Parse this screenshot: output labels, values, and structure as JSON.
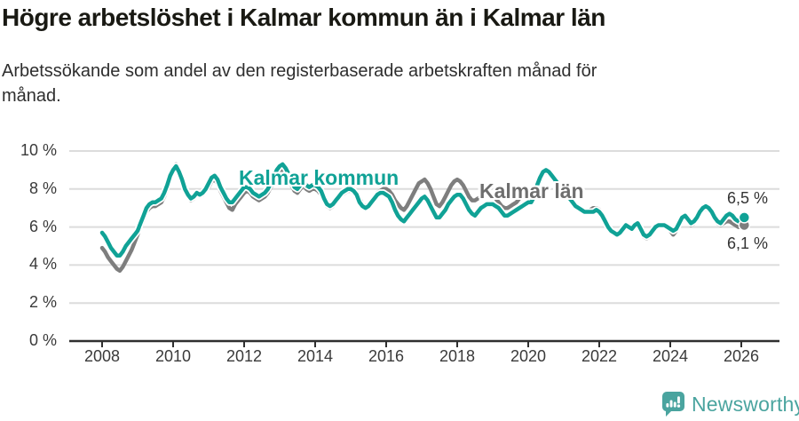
{
  "header": {
    "title": "Högre arbetslöshet i Kalmar kommun än i Kalmar län",
    "subtitle": "Arbetssökande som andel av den registerbaserade arbetskraften månad för månad."
  },
  "chart_data": {
    "type": "line",
    "unit": "%",
    "x_start_year": 2008,
    "x_months_per_point": 1,
    "ylim": [
      0,
      10
    ],
    "grid": true,
    "y_tick_values": [
      0,
      2,
      4,
      6,
      8,
      10
    ],
    "y_tick_labels": [
      "0 %",
      "2 %",
      "4 %",
      "6 %",
      "8 %",
      "10 %"
    ],
    "x_tick_years": [
      2008,
      2010,
      2012,
      2014,
      2016,
      2018,
      2020,
      2022,
      2024,
      2026
    ],
    "x_tick_labels": [
      "2008",
      "2010",
      "2012",
      "2014",
      "2016",
      "2018",
      "2020",
      "2022",
      "2024",
      "2026"
    ],
    "series": [
      {
        "name": "Kalmar kommun",
        "color": "#10a296",
        "final_label": "6,5 %",
        "values": [
          5.7,
          5.5,
          5.2,
          4.9,
          4.7,
          4.5,
          4.5,
          4.7,
          5.0,
          5.2,
          5.4,
          5.6,
          5.8,
          6.2,
          6.6,
          7.0,
          7.2,
          7.3,
          7.3,
          7.4,
          7.5,
          7.8,
          8.2,
          8.7,
          9.0,
          9.2,
          8.9,
          8.5,
          8.0,
          7.7,
          7.5,
          7.6,
          7.8,
          7.7,
          7.8,
          8.0,
          8.3,
          8.6,
          8.7,
          8.5,
          8.1,
          7.8,
          7.5,
          7.3,
          7.3,
          7.5,
          7.7,
          7.9,
          8.1,
          8.1,
          8.0,
          7.8,
          7.7,
          7.6,
          7.7,
          7.8,
          8.0,
          8.3,
          8.6,
          9.0,
          9.2,
          9.3,
          9.1,
          8.8,
          8.4,
          8.1,
          8.0,
          8.2,
          8.4,
          8.2,
          8.1,
          8.2,
          8.2,
          8.1,
          7.9,
          7.5,
          7.2,
          7.1,
          7.2,
          7.4,
          7.6,
          7.8,
          7.9,
          8.0,
          8.0,
          7.9,
          7.7,
          7.3,
          7.1,
          7.0,
          7.1,
          7.3,
          7.5,
          7.7,
          7.8,
          7.8,
          7.7,
          7.6,
          7.3,
          6.9,
          6.6,
          6.4,
          6.3,
          6.5,
          6.7,
          6.9,
          7.1,
          7.3,
          7.5,
          7.6,
          7.4,
          7.1,
          6.8,
          6.5,
          6.5,
          6.7,
          6.9,
          7.2,
          7.4,
          7.6,
          7.7,
          7.7,
          7.5,
          7.2,
          6.9,
          6.7,
          6.6,
          6.8,
          7.0,
          7.1,
          7.2,
          7.2,
          7.2,
          7.1,
          7.0,
          6.8,
          6.6,
          6.6,
          6.7,
          6.8,
          6.9,
          7.0,
          7.1,
          7.2,
          7.3,
          7.3,
          7.6,
          8.2,
          8.6,
          8.9,
          9.0,
          8.9,
          8.7,
          8.5,
          8.3,
          8.1,
          7.9,
          7.7,
          7.5,
          7.3,
          7.1,
          7.0,
          6.9,
          6.8,
          6.8,
          6.8,
          6.8,
          6.9,
          6.8,
          6.6,
          6.3,
          6.0,
          5.8,
          5.7,
          5.6,
          5.7,
          5.9,
          6.1,
          6.0,
          5.9,
          6.1,
          6.2,
          5.9,
          5.6,
          5.5,
          5.6,
          5.8,
          6.0,
          6.1,
          6.1,
          6.1,
          6.0,
          5.9,
          5.8,
          5.9,
          6.2,
          6.5,
          6.6,
          6.4,
          6.2,
          6.3,
          6.5,
          6.8,
          7.0,
          7.1,
          7.0,
          6.8,
          6.5,
          6.3,
          6.2,
          6.4,
          6.6,
          6.7,
          6.6,
          6.4,
          6.3,
          6.4,
          6.5
        ]
      },
      {
        "name": "Kalmar län",
        "color": "#7e7e7e",
        "final_label": "6,1 %",
        "values": [
          4.9,
          4.7,
          4.4,
          4.2,
          4.0,
          3.8,
          3.7,
          3.9,
          4.2,
          4.5,
          4.8,
          5.2,
          5.6,
          6.0,
          6.4,
          6.8,
          7.0,
          7.1,
          7.1,
          7.2,
          7.3,
          7.6,
          8.0,
          8.7,
          9.1,
          9.3,
          9.0,
          8.6,
          8.0,
          7.6,
          7.4,
          7.5,
          7.7,
          7.7,
          7.7,
          7.9,
          8.1,
          8.4,
          8.5,
          8.3,
          7.9,
          7.6,
          7.3,
          7.0,
          6.9,
          7.2,
          7.4,
          7.6,
          7.8,
          7.9,
          7.8,
          7.6,
          7.5,
          7.4,
          7.5,
          7.6,
          7.8,
          8.1,
          8.4,
          8.7,
          8.9,
          9.0,
          8.8,
          8.5,
          8.2,
          7.9,
          7.8,
          8.0,
          8.2,
          8.0,
          7.9,
          8.0,
          8.0,
          7.9,
          7.7,
          7.4,
          7.1,
          7.0,
          7.1,
          7.3,
          7.5,
          7.7,
          7.8,
          7.9,
          7.9,
          8.0,
          7.8,
          7.5,
          7.2,
          7.1,
          7.2,
          7.4,
          7.6,
          7.8,
          7.9,
          8.0,
          8.0,
          7.9,
          7.7,
          7.4,
          7.2,
          7.0,
          6.9,
          7.1,
          7.4,
          7.7,
          8.0,
          8.3,
          8.4,
          8.5,
          8.3,
          8.0,
          7.6,
          7.2,
          7.1,
          7.3,
          7.6,
          7.9,
          8.2,
          8.4,
          8.5,
          8.4,
          8.2,
          7.9,
          7.6,
          7.4,
          7.4,
          7.5,
          7.6,
          7.7,
          7.7,
          7.7,
          7.6,
          7.5,
          7.3,
          7.1,
          7.0,
          7.0,
          7.1,
          7.2,
          7.3,
          7.5,
          7.6,
          7.8,
          7.8,
          7.8,
          8.0,
          8.4,
          8.7,
          8.9,
          8.9,
          8.8,
          8.6,
          8.4,
          8.2,
          8.0,
          7.8,
          7.6,
          7.4,
          7.2,
          7.1,
          7.0,
          6.9,
          6.8,
          6.8,
          6.9,
          7.0,
          7.0,
          6.9,
          6.7,
          6.4,
          6.1,
          5.8,
          5.7,
          5.7,
          5.8,
          6.0,
          6.1,
          6.0,
          5.9,
          6.0,
          6.1,
          5.8,
          5.5,
          5.4,
          5.5,
          5.7,
          5.9,
          6.1,
          6.1,
          6.1,
          6.0,
          5.8,
          5.6,
          5.8,
          6.1,
          6.4,
          6.5,
          6.3,
          6.1,
          6.2,
          6.4,
          6.7,
          6.9,
          7.0,
          6.9,
          6.7,
          6.4,
          6.2,
          6.1,
          6.2,
          6.3,
          6.3,
          6.2,
          6.1,
          6.0,
          6.0,
          6.1
        ]
      }
    ],
    "colors": {
      "grid": "#dcdcdc",
      "axis": "#2f2f2f",
      "tick_text": "#3a3a3a"
    }
  },
  "footer": {
    "brand": "Newsworthy",
    "logo_icon": "bar-chart-speech-bubble",
    "brand_color": "#4aa49f"
  }
}
